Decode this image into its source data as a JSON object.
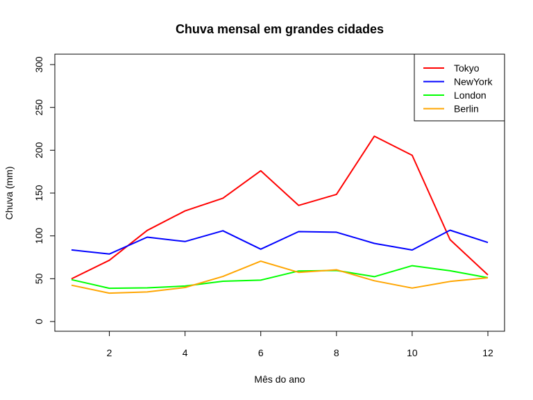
{
  "chart_data": {
    "type": "line",
    "title": "Chuva mensal em grandes cidades",
    "xlabel": "Mês do ano",
    "ylabel": "Chuva (mm)",
    "xlim": [
      1,
      12
    ],
    "ylim": [
      0,
      300
    ],
    "x_ticks": [
      2,
      4,
      6,
      8,
      10,
      12
    ],
    "y_ticks": [
      0,
      50,
      100,
      150,
      200,
      250,
      300
    ],
    "grid": false,
    "legend_position": "top-right",
    "x": [
      1,
      2,
      3,
      4,
      5,
      6,
      7,
      8,
      9,
      10,
      11,
      12
    ],
    "series": [
      {
        "name": "Tokyo",
        "color": "#ff0000",
        "values": [
          49.9,
          71.5,
          106.4,
          129.2,
          144.0,
          176.0,
          135.6,
          148.5,
          216.4,
          194.1,
          95.6,
          54.4
        ]
      },
      {
        "name": "NewYork",
        "color": "#0000ff",
        "values": [
          83.6,
          78.8,
          98.5,
          93.4,
          106.0,
          84.5,
          105.0,
          104.3,
          91.2,
          83.5,
          106.6,
          92.3
        ]
      },
      {
        "name": "London",
        "color": "#00ff00",
        "values": [
          48.9,
          38.8,
          39.3,
          41.4,
          47.0,
          48.3,
          59.0,
          59.6,
          52.4,
          65.2,
          59.3,
          51.2
        ]
      },
      {
        "name": "Berlin",
        "color": "#ffa500",
        "values": [
          42.4,
          33.2,
          34.5,
          39.7,
          52.6,
          70.5,
          57.4,
          60.4,
          47.6,
          39.1,
          46.8,
          51.1
        ]
      }
    ]
  }
}
